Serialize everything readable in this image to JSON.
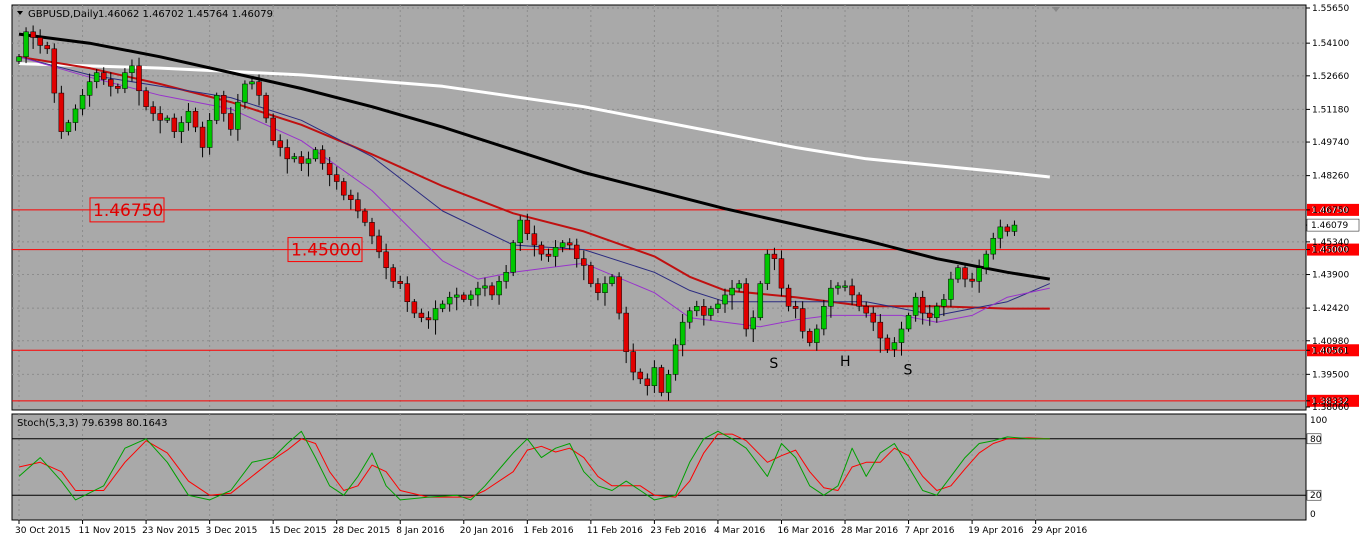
{
  "window": {
    "symbol_header": "GBPUSD,Daily",
    "ohlc_header": "1.46062 1.46702 1.45764 1.46079",
    "stoch_header": "Stoch(5,3,3) 79.6398 80.1643"
  },
  "colors": {
    "background": "#a9a9a9",
    "grid": "#8c8c8c",
    "bull_candle": "#00c800",
    "bear_candle": "#e00000",
    "ma_white": "#ffffff",
    "ma_black": "#000000",
    "ma_red": "#c01010",
    "ma_navy": "#2b2b80",
    "ma_purple": "#9933cc",
    "stoch_main": "#00a000",
    "stoch_signal": "#ff0000",
    "level_line": "#ff0000"
  },
  "chart_data": [
    {
      "type": "candlestick",
      "symbol": "GBPUSD",
      "timeframe": "Daily",
      "y_ticks": [
        "1.55650",
        "1.54100",
        "1.52660",
        "1.51180",
        "1.49740",
        "1.48260",
        "1.46750",
        "1.46079",
        "1.45340",
        "1.45000",
        "1.43900",
        "1.42420",
        "1.40980",
        "1.40561",
        "1.39500",
        "1.38332",
        "1.38060"
      ],
      "price_grid": [
        1.5565,
        1.541,
        1.5266,
        1.5118,
        1.4974,
        1.4826,
        1.4534,
        1.439,
        1.4242,
        1.4098,
        1.395
      ],
      "ylim": [
        1.3806,
        1.5565
      ],
      "x_ticks": [
        "30 Oct 2015",
        "11 Nov 2015",
        "23 Nov 2015",
        "3 Dec 2015",
        "15 Dec 2015",
        "28 Dec 2015",
        "8 Jan 2016",
        "20 Jan 2016",
        "1 Feb 2016",
        "11 Feb 2016",
        "23 Feb 2016",
        "4 Mar 2016",
        "16 Mar 2016",
        "28 Mar 2016",
        "7 Apr 2016",
        "19 Apr 2016",
        "29 Apr 2016"
      ],
      "x_tick_bar_index": [
        0,
        9,
        18,
        27,
        36,
        45,
        54,
        63,
        72,
        81,
        90,
        99,
        108,
        117,
        126,
        135,
        144
      ],
      "levels": [
        {
          "value": 1.4675,
          "label": "1.46750",
          "big_label": "1.46750"
        },
        {
          "value": 1.45,
          "label": "1.45000",
          "big_label": "1.45000"
        },
        {
          "value": 1.40561,
          "label": "1.40561"
        },
        {
          "value": 1.38332,
          "label": "1.38332"
        }
      ],
      "current_price": {
        "value": 1.46079,
        "label": "1.46079"
      },
      "pattern_labels": [
        {
          "text": "S",
          "bar_index": 107,
          "price": 1.4
        },
        {
          "text": "H",
          "bar_index": 117,
          "price": 1.4008
        },
        {
          "text": "S",
          "bar_index": 126,
          "price": 1.3972
        }
      ],
      "closes": [
        1.535,
        1.546,
        1.5435,
        1.54,
        1.5385,
        1.519,
        1.502,
        1.506,
        1.512,
        1.518,
        1.524,
        1.528,
        1.525,
        1.522,
        1.521,
        1.528,
        1.531,
        1.52,
        1.513,
        1.51,
        1.507,
        1.508,
        1.502,
        1.506,
        1.511,
        1.504,
        1.495,
        1.507,
        1.518,
        1.51,
        1.503,
        1.515,
        1.523,
        1.524,
        1.518,
        1.508,
        1.498,
        1.495,
        1.49,
        1.491,
        1.488,
        1.49,
        1.494,
        1.488,
        1.483,
        1.48,
        1.474,
        1.472,
        1.467,
        1.462,
        1.456,
        1.449,
        1.442,
        1.436,
        1.435,
        1.427,
        1.422,
        1.42,
        1.419,
        1.424,
        1.426,
        1.429,
        1.43,
        1.428,
        1.43,
        1.433,
        1.434,
        1.43,
        1.436,
        1.44,
        1.453,
        1.463,
        1.457,
        1.452,
        1.448,
        1.447,
        1.451,
        1.453,
        1.452,
        1.446,
        1.443,
        1.435,
        1.431,
        1.435,
        1.438,
        1.422,
        1.405,
        1.396,
        1.393,
        1.39,
        1.398,
        1.387,
        1.395,
        1.408,
        1.418,
        1.423,
        1.425,
        1.421,
        1.424,
        1.426,
        1.43,
        1.433,
        1.435,
        1.415,
        1.42,
        1.435,
        1.448,
        1.446,
        1.433,
        1.425,
        1.424,
        1.414,
        1.409,
        1.415,
        1.425,
        1.433,
        1.434,
        1.434,
        1.43,
        1.425,
        1.422,
        1.418,
        1.411,
        1.406,
        1.409,
        1.415,
        1.421,
        1.429,
        1.422,
        1.42,
        1.425,
        1.428,
        1.437,
        1.442,
        1.437,
        1.436,
        1.442,
        1.448,
        1.455,
        1.46,
        1.458,
        1.4608
      ],
      "ma_white": [
        [
          0,
          1.532
        ],
        [
          20,
          1.53
        ],
        [
          40,
          1.527
        ],
        [
          60,
          1.522
        ],
        [
          80,
          1.513
        ],
        [
          100,
          1.501
        ],
        [
          110,
          1.495
        ],
        [
          120,
          1.49
        ],
        [
          130,
          1.487
        ],
        [
          140,
          1.484
        ],
        [
          146,
          1.482
        ]
      ],
      "ma_black": [
        [
          0,
          1.545
        ],
        [
          10,
          1.541
        ],
        [
          20,
          1.535
        ],
        [
          30,
          1.528
        ],
        [
          40,
          1.521
        ],
        [
          50,
          1.513
        ],
        [
          60,
          1.504
        ],
        [
          70,
          1.494
        ],
        [
          80,
          1.484
        ],
        [
          90,
          1.476
        ],
        [
          100,
          1.468
        ],
        [
          110,
          1.461
        ],
        [
          120,
          1.454
        ],
        [
          130,
          1.446
        ],
        [
          140,
          1.44
        ],
        [
          146,
          1.437
        ]
      ],
      "ma_red": [
        [
          0,
          1.535
        ],
        [
          10,
          1.53
        ],
        [
          20,
          1.523
        ],
        [
          30,
          1.515
        ],
        [
          40,
          1.505
        ],
        [
          50,
          1.492
        ],
        [
          60,
          1.478
        ],
        [
          70,
          1.466
        ],
        [
          80,
          1.458
        ],
        [
          90,
          1.447
        ],
        [
          95,
          1.438
        ],
        [
          100,
          1.432
        ],
        [
          110,
          1.429
        ],
        [
          120,
          1.425
        ],
        [
          130,
          1.425
        ],
        [
          140,
          1.424
        ],
        [
          146,
          1.424
        ]
      ],
      "ma_navy": [
        [
          0,
          1.535
        ],
        [
          10,
          1.527
        ],
        [
          20,
          1.522
        ],
        [
          30,
          1.517
        ],
        [
          40,
          1.507
        ],
        [
          50,
          1.491
        ],
        [
          60,
          1.467
        ],
        [
          70,
          1.452
        ],
        [
          80,
          1.45
        ],
        [
          90,
          1.44
        ],
        [
          95,
          1.432
        ],
        [
          100,
          1.427
        ],
        [
          110,
          1.427
        ],
        [
          120,
          1.427
        ],
        [
          130,
          1.421
        ],
        [
          140,
          1.427
        ],
        [
          146,
          1.435
        ]
      ],
      "ma_purple": [
        [
          0,
          1.535
        ],
        [
          10,
          1.526
        ],
        [
          20,
          1.518
        ],
        [
          30,
          1.512
        ],
        [
          40,
          1.498
        ],
        [
          50,
          1.476
        ],
        [
          60,
          1.445
        ],
        [
          65,
          1.437
        ],
        [
          70,
          1.44
        ],
        [
          75,
          1.442
        ],
        [
          80,
          1.444
        ],
        [
          90,
          1.431
        ],
        [
          95,
          1.42
        ],
        [
          100,
          1.418
        ],
        [
          105,
          1.416
        ],
        [
          110,
          1.419
        ],
        [
          115,
          1.421
        ],
        [
          120,
          1.421
        ],
        [
          125,
          1.421
        ],
        [
          130,
          1.418
        ],
        [
          135,
          1.421
        ],
        [
          140,
          1.429
        ],
        [
          146,
          1.433
        ]
      ]
    },
    {
      "type": "line",
      "title": "Stoch(5,3,3)",
      "ylim": [
        0,
        100
      ],
      "y_ticks": [
        "100",
        "80",
        "20",
        "0"
      ],
      "levels": [
        80,
        20
      ],
      "main": [
        [
          0,
          40
        ],
        [
          3,
          60
        ],
        [
          6,
          35
        ],
        [
          8,
          15
        ],
        [
          12,
          30
        ],
        [
          15,
          70
        ],
        [
          18,
          80
        ],
        [
          21,
          55
        ],
        [
          24,
          20
        ],
        [
          27,
          15
        ],
        [
          30,
          25
        ],
        [
          33,
          55
        ],
        [
          36,
          60
        ],
        [
          38,
          75
        ],
        [
          40,
          88
        ],
        [
          42,
          60
        ],
        [
          44,
          30
        ],
        [
          46,
          20
        ],
        [
          48,
          40
        ],
        [
          50,
          65
        ],
        [
          52,
          30
        ],
        [
          54,
          15
        ],
        [
          58,
          18
        ],
        [
          62,
          20
        ],
        [
          64,
          15
        ],
        [
          66,
          30
        ],
        [
          70,
          65
        ],
        [
          72,
          80
        ],
        [
          74,
          60
        ],
        [
          76,
          70
        ],
        [
          78,
          75
        ],
        [
          80,
          45
        ],
        [
          82,
          30
        ],
        [
          84,
          25
        ],
        [
          86,
          35
        ],
        [
          88,
          25
        ],
        [
          90,
          15
        ],
        [
          93,
          20
        ],
        [
          95,
          55
        ],
        [
          97,
          80
        ],
        [
          99,
          88
        ],
        [
          101,
          80
        ],
        [
          103,
          70
        ],
        [
          106,
          40
        ],
        [
          108,
          75
        ],
        [
          110,
          60
        ],
        [
          112,
          30
        ],
        [
          114,
          20
        ],
        [
          116,
          30
        ],
        [
          118,
          70
        ],
        [
          120,
          40
        ],
        [
          122,
          65
        ],
        [
          124,
          75
        ],
        [
          126,
          50
        ],
        [
          128,
          25
        ],
        [
          130,
          20
        ],
        [
          132,
          40
        ],
        [
          134,
          60
        ],
        [
          136,
          75
        ],
        [
          138,
          78
        ],
        [
          140,
          82
        ],
        [
          143,
          80
        ],
        [
          146,
          80
        ]
      ],
      "signal": [
        [
          0,
          50
        ],
        [
          3,
          55
        ],
        [
          6,
          45
        ],
        [
          8,
          25
        ],
        [
          12,
          25
        ],
        [
          15,
          55
        ],
        [
          18,
          78
        ],
        [
          21,
          65
        ],
        [
          24,
          35
        ],
        [
          27,
          20
        ],
        [
          30,
          22
        ],
        [
          33,
          40
        ],
        [
          36,
          58
        ],
        [
          38,
          68
        ],
        [
          40,
          80
        ],
        [
          42,
          75
        ],
        [
          44,
          45
        ],
        [
          46,
          25
        ],
        [
          48,
          30
        ],
        [
          50,
          52
        ],
        [
          52,
          45
        ],
        [
          54,
          25
        ],
        [
          58,
          18
        ],
        [
          62,
          18
        ],
        [
          64,
          18
        ],
        [
          66,
          25
        ],
        [
          70,
          45
        ],
        [
          72,
          68
        ],
        [
          74,
          72
        ],
        [
          76,
          66
        ],
        [
          78,
          70
        ],
        [
          80,
          60
        ],
        [
          82,
          40
        ],
        [
          84,
          30
        ],
        [
          86,
          30
        ],
        [
          88,
          30
        ],
        [
          90,
          20
        ],
        [
          93,
          18
        ],
        [
          95,
          35
        ],
        [
          97,
          65
        ],
        [
          99,
          85
        ],
        [
          101,
          85
        ],
        [
          103,
          78
        ],
        [
          106,
          55
        ],
        [
          108,
          62
        ],
        [
          110,
          68
        ],
        [
          112,
          45
        ],
        [
          114,
          28
        ],
        [
          116,
          25
        ],
        [
          118,
          50
        ],
        [
          120,
          55
        ],
        [
          122,
          55
        ],
        [
          124,
          70
        ],
        [
          126,
          62
        ],
        [
          128,
          40
        ],
        [
          130,
          25
        ],
        [
          132,
          30
        ],
        [
          134,
          48
        ],
        [
          136,
          65
        ],
        [
          138,
          75
        ],
        [
          140,
          80
        ],
        [
          143,
          81
        ],
        [
          146,
          80
        ]
      ]
    }
  ]
}
